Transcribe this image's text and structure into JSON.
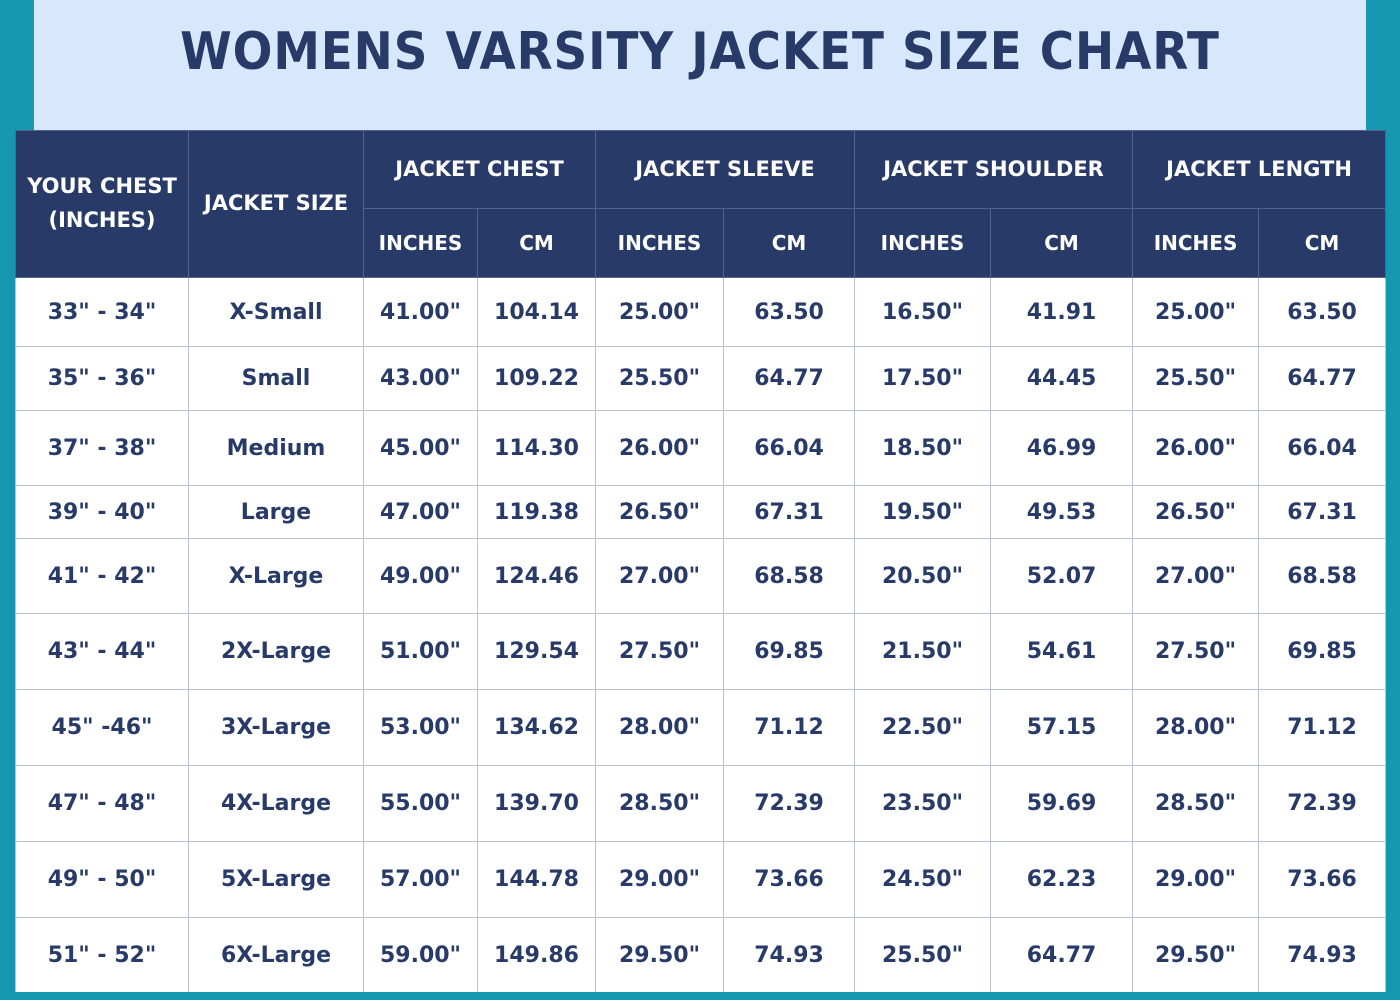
{
  "title": "WOMENS VARSITY JACKET SIZE CHART",
  "headers": {
    "your_chest": "YOUR CHEST (INCHES)",
    "jacket_size": "JACKET SIZE",
    "jacket_chest": "JACKET CHEST",
    "jacket_sleeve": "JACKET SLEEVE",
    "jacket_shoulder": "JACKET SHOULDER",
    "jacket_length": "JACKET LENGTH",
    "inches": "INCHES",
    "cm": "CM"
  },
  "rows": [
    {
      "chest": "33\" - 34\"",
      "size": "X-Small",
      "chest_in": "41.00\"",
      "chest_cm": "104.14",
      "sleeve_in": "25.00\"",
      "sleeve_cm": "63.50",
      "shoulder_in": "16.50\"",
      "shoulder_cm": "41.91",
      "length_in": "25.00\"",
      "length_cm": "63.50"
    },
    {
      "chest": "35\" - 36\"",
      "size": "Small",
      "chest_in": "43.00\"",
      "chest_cm": "109.22",
      "sleeve_in": "25.50\"",
      "sleeve_cm": "64.77",
      "shoulder_in": "17.50\"",
      "shoulder_cm": "44.45",
      "length_in": "25.50\"",
      "length_cm": "64.77"
    },
    {
      "chest": "37\" - 38\"",
      "size": "Medium",
      "chest_in": "45.00\"",
      "chest_cm": "114.30",
      "sleeve_in": "26.00\"",
      "sleeve_cm": "66.04",
      "shoulder_in": "18.50\"",
      "shoulder_cm": "46.99",
      "length_in": "26.00\"",
      "length_cm": "66.04"
    },
    {
      "chest": "39\" - 40\"",
      "size": "Large",
      "chest_in": "47.00\"",
      "chest_cm": "119.38",
      "sleeve_in": "26.50\"",
      "sleeve_cm": "67.31",
      "shoulder_in": "19.50\"",
      "shoulder_cm": "49.53",
      "length_in": "26.50\"",
      "length_cm": "67.31"
    },
    {
      "chest": "41\" - 42\"",
      "size": "X-Large",
      "chest_in": "49.00\"",
      "chest_cm": "124.46",
      "sleeve_in": "27.00\"",
      "sleeve_cm": "68.58",
      "shoulder_in": "20.50\"",
      "shoulder_cm": "52.07",
      "length_in": "27.00\"",
      "length_cm": "68.58"
    },
    {
      "chest": "43\" - 44\"",
      "size": "2X-Large",
      "chest_in": "51.00\"",
      "chest_cm": "129.54",
      "sleeve_in": "27.50\"",
      "sleeve_cm": "69.85",
      "shoulder_in": "21.50\"",
      "shoulder_cm": "54.61",
      "length_in": "27.50\"",
      "length_cm": "69.85"
    },
    {
      "chest": "45\" -46\"",
      "size": "3X-Large",
      "chest_in": "53.00\"",
      "chest_cm": "134.62",
      "sleeve_in": "28.00\"",
      "sleeve_cm": "71.12",
      "shoulder_in": "22.50\"",
      "shoulder_cm": "57.15",
      "length_in": "28.00\"",
      "length_cm": "71.12"
    },
    {
      "chest": "47\" - 48\"",
      "size": "4X-Large",
      "chest_in": "55.00\"",
      "chest_cm": "139.70",
      "sleeve_in": "28.50\"",
      "sleeve_cm": "72.39",
      "shoulder_in": "23.50\"",
      "shoulder_cm": "59.69",
      "length_in": "28.50\"",
      "length_cm": "72.39"
    },
    {
      "chest": "49\" - 50\"",
      "size": "5X-Large",
      "chest_in": "57.00\"",
      "chest_cm": "144.78",
      "sleeve_in": "29.00\"",
      "sleeve_cm": "73.66",
      "shoulder_in": "24.50\"",
      "shoulder_cm": "62.23",
      "length_in": "29.00\"",
      "length_cm": "73.66"
    },
    {
      "chest": "51\" - 52\"",
      "size": "6X-Large",
      "chest_in": "59.00\"",
      "chest_cm": "149.86",
      "sleeve_in": "29.50\"",
      "sleeve_cm": "74.93",
      "shoulder_in": "25.50\"",
      "shoulder_cm": "64.77",
      "length_in": "29.50\"",
      "length_cm": "74.93"
    }
  ],
  "colors": {
    "header_bg": "#273a68",
    "title_panel": "#d7e8fc",
    "frame": "#1697b0"
  }
}
